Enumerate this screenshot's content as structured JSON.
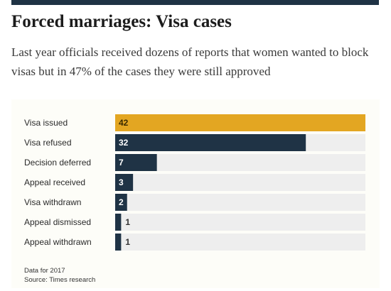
{
  "header": {
    "title": "Forced marriages: Visa cases",
    "subtitle": "Last year officials received dozens of reports that women wanted to block visas but in 47% of the cases they were still approved"
  },
  "footer": {
    "note": "Data for 2017",
    "source": "Source: Times research"
  },
  "colors": {
    "highlight": "#e3a622",
    "bar": "#1f3345",
    "track": "#eeeeee",
    "top_rule": "#1f3345"
  },
  "chart_data": {
    "type": "bar",
    "orientation": "horizontal",
    "title": "Forced marriages: Visa cases",
    "categories": [
      "Visa issued",
      "Visa refused",
      "Decision deferred",
      "Appeal received",
      "Visa withdrawn",
      "Appeal dismissed",
      "Appeal withdrawn"
    ],
    "values": [
      42,
      32,
      7,
      3,
      2,
      1,
      1
    ],
    "xlim": [
      0,
      42
    ],
    "highlight_index": 0,
    "grid": false,
    "legend": "none"
  }
}
